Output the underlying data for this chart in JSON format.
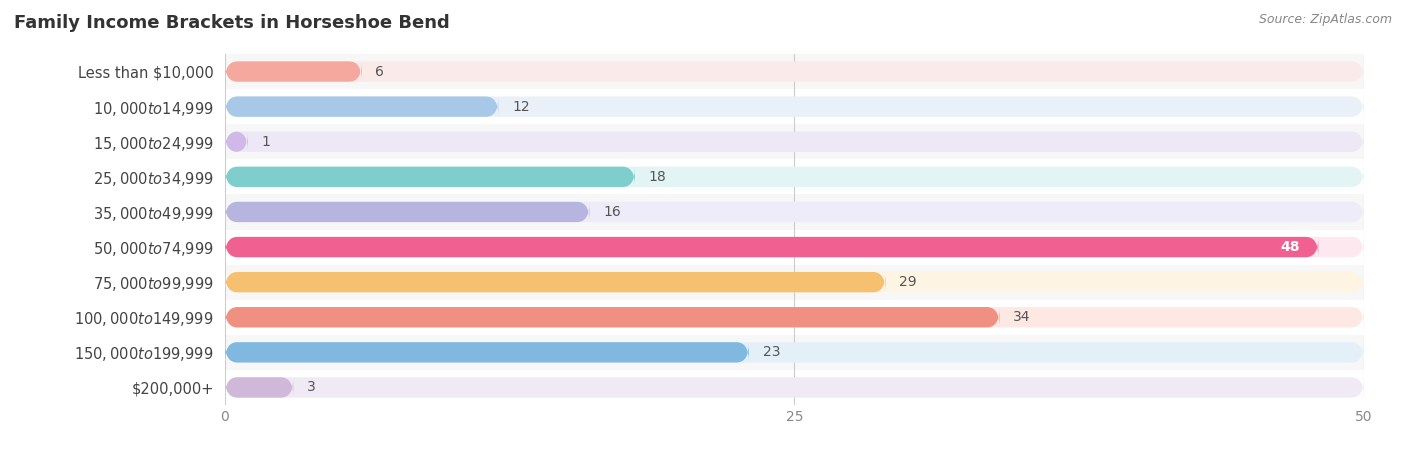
{
  "title": "Family Income Brackets in Horseshoe Bend",
  "source": "Source: ZipAtlas.com",
  "categories": [
    "Less than $10,000",
    "$10,000 to $14,999",
    "$15,000 to $24,999",
    "$25,000 to $34,999",
    "$35,000 to $49,999",
    "$50,000 to $74,999",
    "$75,000 to $99,999",
    "$100,000 to $149,999",
    "$150,000 to $199,999",
    "$200,000+"
  ],
  "values": [
    6,
    12,
    1,
    18,
    16,
    48,
    29,
    34,
    23,
    3
  ],
  "bar_colors": [
    "#f5a89e",
    "#a8c8e8",
    "#d0b8e8",
    "#7ecece",
    "#b8b4e0",
    "#f06090",
    "#f5c070",
    "#f09080",
    "#80b8e0",
    "#d0b8d8"
  ],
  "bg_colors": [
    "#faeae8",
    "#eaf0f8",
    "#ede8f5",
    "#e2f4f4",
    "#eeecf8",
    "#fde8f0",
    "#fef4e4",
    "#fde8e4",
    "#e4f0f8",
    "#f0eaf5"
  ],
  "xlim": [
    0,
    50
  ],
  "xticks": [
    0,
    25,
    50
  ],
  "bar_height": 0.58,
  "figure_bg": "#ffffff",
  "axes_bg": "#ffffff",
  "title_fontsize": 13,
  "label_fontsize": 10.5,
  "value_fontsize": 10,
  "white_label_threshold": 35,
  "row_bg_even": "#f7f7f7",
  "row_bg_odd": "#ffffff"
}
